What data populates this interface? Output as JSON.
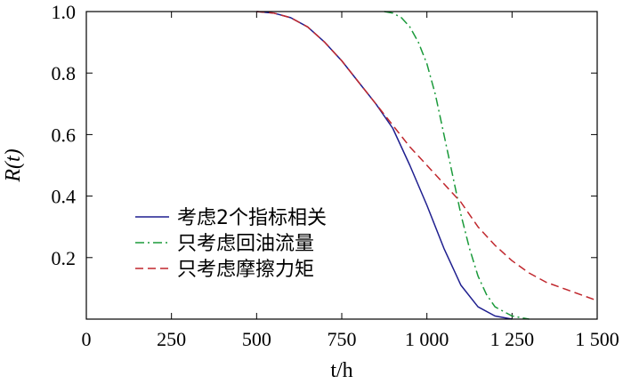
{
  "chart_data": {
    "type": "line",
    "xlabel": "t/h",
    "ylabel": "R(t)",
    "xlim": [
      0,
      1500
    ],
    "ylim": [
      0,
      1.0
    ],
    "x_ticks": [
      0,
      250,
      500,
      750,
      1000,
      1250,
      1500
    ],
    "x_tick_labels": [
      "0",
      "250",
      "500",
      "750",
      "1 000",
      "1 250",
      "1 500"
    ],
    "y_ticks": [
      0.2,
      0.4,
      0.6,
      0.8,
      1.0
    ],
    "y_tick_labels": [
      "0.2",
      "0.4",
      "0.6",
      "0.8",
      "1.0"
    ],
    "grid": false,
    "legend_position": "lower-left",
    "series": [
      {
        "name": "考虑2个指标相关",
        "color": "#1f1f8f",
        "dash": "solid",
        "points": [
          [
            500,
            1.0
          ],
          [
            550,
            0.995
          ],
          [
            600,
            0.98
          ],
          [
            650,
            0.95
          ],
          [
            700,
            0.9
          ],
          [
            750,
            0.84
          ],
          [
            800,
            0.77
          ],
          [
            850,
            0.7
          ],
          [
            900,
            0.62
          ],
          [
            950,
            0.5
          ],
          [
            1000,
            0.37
          ],
          [
            1050,
            0.23
          ],
          [
            1100,
            0.11
          ],
          [
            1150,
            0.04
          ],
          [
            1200,
            0.01
          ],
          [
            1250,
            0.0
          ]
        ]
      },
      {
        "name": "只考虑回油流量",
        "color": "#1a9a3a",
        "dash": "dashdot",
        "points": [
          [
            875,
            1.0
          ],
          [
            900,
            0.995
          ],
          [
            925,
            0.98
          ],
          [
            950,
            0.95
          ],
          [
            975,
            0.9
          ],
          [
            1000,
            0.83
          ],
          [
            1025,
            0.73
          ],
          [
            1050,
            0.6
          ],
          [
            1075,
            0.47
          ],
          [
            1100,
            0.34
          ],
          [
            1125,
            0.23
          ],
          [
            1150,
            0.14
          ],
          [
            1175,
            0.08
          ],
          [
            1200,
            0.04
          ],
          [
            1250,
            0.01
          ],
          [
            1300,
            0.0
          ]
        ]
      },
      {
        "name": "只考虑摩擦力矩",
        "color": "#c0272d",
        "dash": "dashed",
        "points": [
          [
            500,
            1.0
          ],
          [
            550,
            0.995
          ],
          [
            600,
            0.98
          ],
          [
            650,
            0.95
          ],
          [
            700,
            0.9
          ],
          [
            750,
            0.84
          ],
          [
            800,
            0.77
          ],
          [
            850,
            0.7
          ],
          [
            900,
            0.63
          ],
          [
            950,
            0.56
          ],
          [
            1000,
            0.5
          ],
          [
            1050,
            0.44
          ],
          [
            1100,
            0.38
          ],
          [
            1150,
            0.3
          ],
          [
            1200,
            0.24
          ],
          [
            1250,
            0.19
          ],
          [
            1300,
            0.15
          ],
          [
            1350,
            0.12
          ],
          [
            1400,
            0.1
          ],
          [
            1450,
            0.08
          ],
          [
            1500,
            0.06
          ]
        ]
      }
    ]
  }
}
